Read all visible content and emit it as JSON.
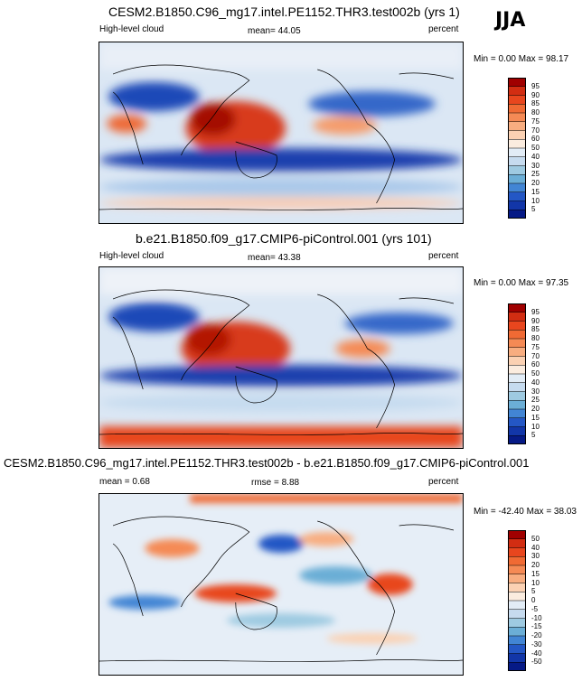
{
  "season": "JJA",
  "chart_data": [
    {
      "type": "heatmap",
      "title": "CESM2.B1850.C96_mg17.intel.PE1152.THR3.test002b (yrs 1)",
      "left_label": "High-level cloud",
      "center_label": "mean=  44.05",
      "right_label": "percent",
      "minmax_label": "Min =   0.00 Max =  98.17",
      "min": 0.0,
      "max": 98.17,
      "mean": 44.05,
      "colorbar_levels": [
        "95",
        "90",
        "85",
        "80",
        "75",
        "70",
        "60",
        "50",
        "40",
        "30",
        "25",
        "20",
        "15",
        "10",
        "5"
      ],
      "colorbar_colors": [
        "#a00000",
        "#d22d12",
        "#e8461e",
        "#f06a34",
        "#f58a55",
        "#f8ad80",
        "#fbd1b3",
        "#fbecdf",
        "#e2ecf6",
        "#c6dbef",
        "#9ecae1",
        "#6baed6",
        "#4285d4",
        "#2457c5",
        "#1236a8",
        "#061a86"
      ]
    },
    {
      "type": "heatmap",
      "title": "b.e21.B1850.f09_g17.CMIP6-piControl.001 (yrs 101)",
      "left_label": "High-level cloud",
      "center_label": "mean=  43.38",
      "right_label": "percent",
      "minmax_label": "Min =   0.00 Max =  97.35",
      "min": 0.0,
      "max": 97.35,
      "mean": 43.38,
      "colorbar_levels": [
        "95",
        "90",
        "85",
        "80",
        "75",
        "70",
        "60",
        "50",
        "40",
        "30",
        "25",
        "20",
        "15",
        "10",
        "5"
      ],
      "colorbar_colors": [
        "#a00000",
        "#d22d12",
        "#e8461e",
        "#f06a34",
        "#f58a55",
        "#f8ad80",
        "#fbd1b3",
        "#fbecdf",
        "#e2ecf6",
        "#c6dbef",
        "#9ecae1",
        "#6baed6",
        "#4285d4",
        "#2457c5",
        "#1236a8",
        "#061a86"
      ]
    },
    {
      "type": "heatmap",
      "title": "CESM2.B1850.C96_mg17.intel.PE1152.THR3.test002b - b.e21.B1850.f09_g17.CMIP6-piControl.001",
      "left_label": "mean =  0.68",
      "center_label": "rmse =  8.88",
      "right_label": "percent",
      "minmax_label": "Min = -42.40 Max =  38.03",
      "min": -42.4,
      "max": 38.03,
      "mean": 0.68,
      "rmse": 8.88,
      "colorbar_levels": [
        "50",
        "40",
        "30",
        "20",
        "15",
        "10",
        "5",
        "0",
        "-5",
        "-10",
        "-15",
        "-20",
        "-30",
        "-40",
        "-50"
      ],
      "colorbar_colors": [
        "#a00000",
        "#d22d12",
        "#e8461e",
        "#f06a34",
        "#f58a55",
        "#f8ad80",
        "#fbd1b3",
        "#fbecdf",
        "#e2ecf6",
        "#c6dbef",
        "#9ecae1",
        "#6baed6",
        "#4285d4",
        "#2457c5",
        "#1236a8",
        "#061a86"
      ]
    }
  ]
}
